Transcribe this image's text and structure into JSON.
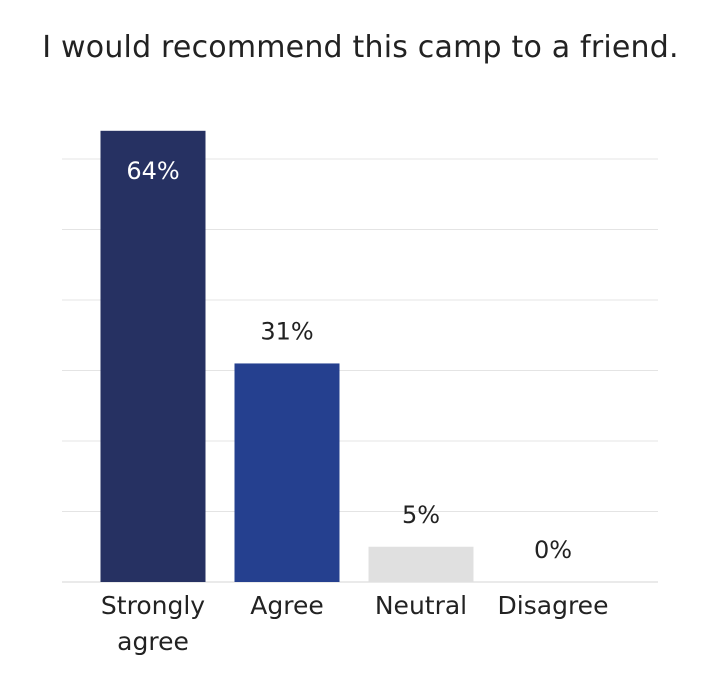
{
  "chart_data": {
    "type": "bar",
    "title": "I would recommend this camp to a friend.",
    "categories": [
      "Strongly agree",
      "Agree",
      "Neutral",
      "Disagree"
    ],
    "category_lines": [
      [
        "Strongly",
        "agree"
      ],
      [
        "Agree"
      ],
      [
        "Neutral"
      ],
      [
        "Disagree"
      ]
    ],
    "values": [
      64,
      31,
      5,
      0
    ],
    "value_labels": [
      "64%",
      "31%",
      "5%",
      "0%"
    ],
    "xlabel": "",
    "ylabel": "",
    "ylim": [
      0,
      60
    ],
    "grid": true,
    "legend": "none",
    "colors": [
      "#263162",
      "#25408f",
      "#e0e0e0",
      "#e0e0e0"
    ],
    "label_inside": [
      true,
      false,
      false,
      false
    ]
  }
}
